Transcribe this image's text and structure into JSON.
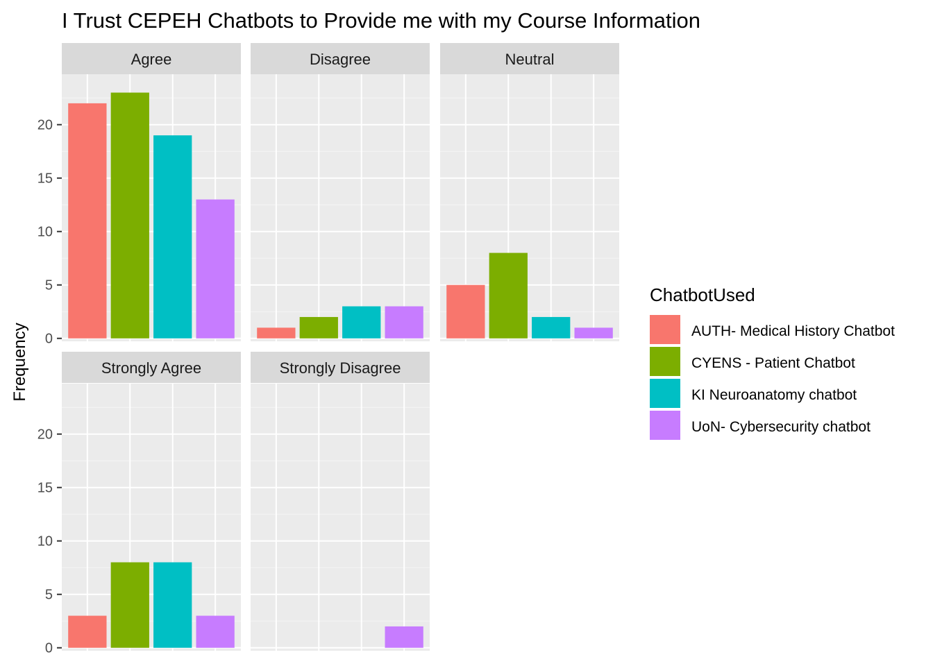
{
  "chart_data": {
    "type": "bar",
    "title": "I Trust CEPEH Chatbots to Provide me with my Course Information",
    "xlabel": "",
    "ylabel": "Frequency",
    "ylim": [
      0,
      24
    ],
    "yticks": [
      0,
      5,
      10,
      15,
      20
    ],
    "grid": true,
    "legend": {
      "title": "ChatbotUsed",
      "placement": "right",
      "entries": [
        "AUTH- Medical History Chatbot",
        "CYENS - Patient Chatbot",
        "KI Neuroanatomy chatbot",
        "UoN- Cybersecurity chatbot"
      ]
    },
    "colors": [
      "#F8766D",
      "#7CAE00",
      "#00BFC4",
      "#C77CFF"
    ],
    "categories": [
      "AUTH- Medical History Chatbot",
      "CYENS - Patient Chatbot",
      "KI Neuroanatomy chatbot",
      "UoN- Cybersecurity chatbot"
    ],
    "facets": [
      {
        "label": "Agree",
        "values": [
          22,
          23,
          19,
          13
        ]
      },
      {
        "label": "Disagree",
        "values": [
          1,
          2,
          3,
          3
        ]
      },
      {
        "label": "Neutral",
        "values": [
          5,
          8,
          2,
          1
        ]
      },
      {
        "label": "Strongly Agree",
        "values": [
          3,
          8,
          8,
          3
        ]
      },
      {
        "label": "Strongly Disagree",
        "values": [
          0,
          0,
          0,
          2
        ]
      }
    ]
  }
}
